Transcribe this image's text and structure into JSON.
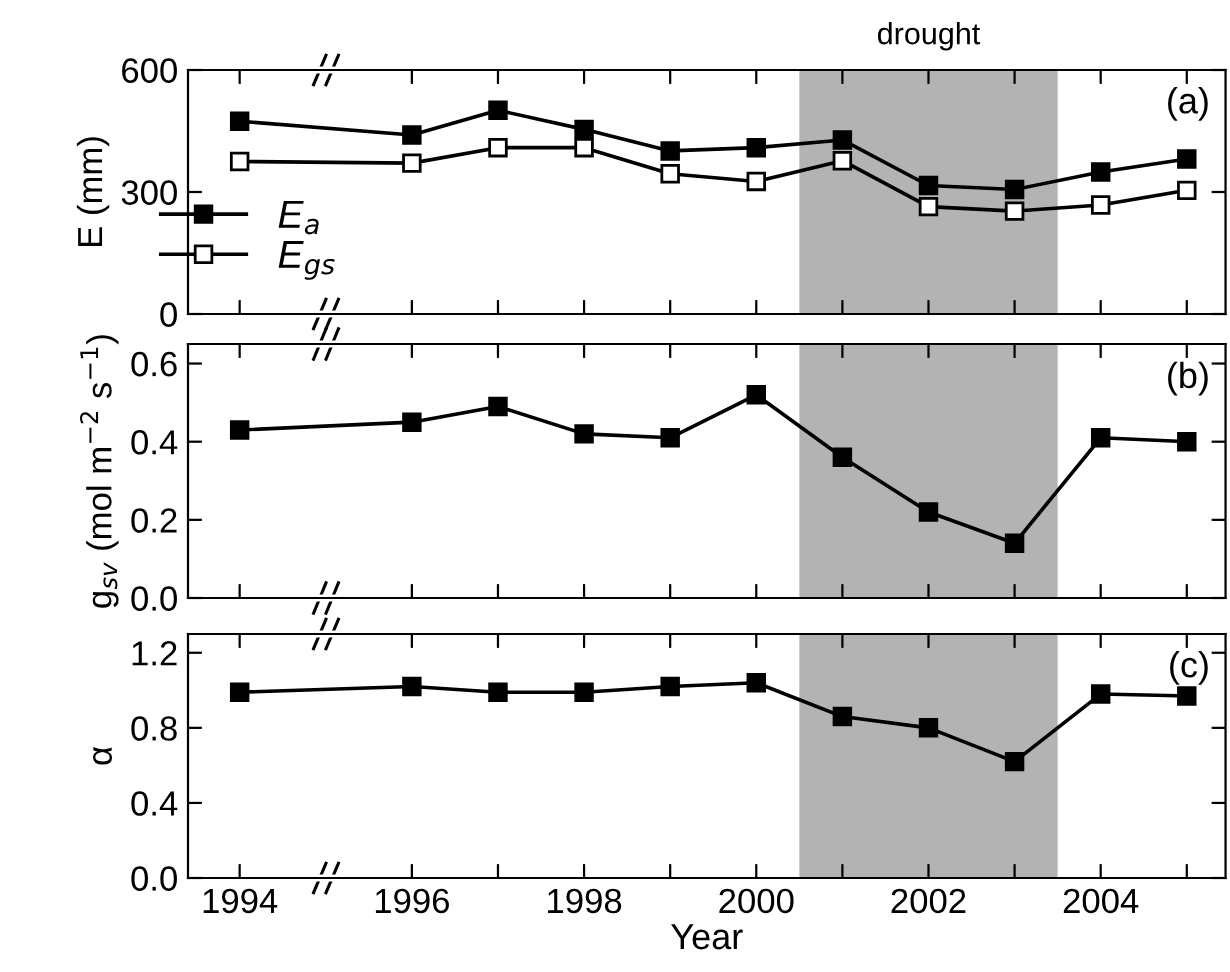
{
  "chart_data": [
    {
      "type": "line",
      "ylabel": "E (mm)",
      "x": [
        1994,
        1996,
        1997,
        1998,
        1999,
        2000,
        2001,
        2002,
        2003,
        2004,
        2005
      ],
      "series": [
        {
          "name": "E$_{a}$",
          "color": "#000000",
          "values": [
            474,
            440,
            501,
            454,
            401,
            409,
            428,
            316,
            306,
            349,
            381
          ]
        },
        {
          "name": "E$_{gs}$",
          "color": "#ffffff",
          "values": [
            375,
            371,
            409,
            409,
            345,
            326,
            377,
            264,
            253,
            268,
            304
          ]
        }
      ],
      "xlim": [
        1993.4,
        2005.45
      ],
      "xticks": [
        1994,
        1996,
        {
          "value": 1997,
          "label": null
        },
        1998,
        {
          "value": 1999,
          "label": null
        },
        2000,
        {
          "value": 2001,
          "label": null
        },
        2002,
        {
          "value": 2003,
          "label": null
        },
        2004,
        {
          "value": 2005,
          "label": null
        }
      ],
      "ylim": [
        0,
        600
      ],
      "yticks": [
        0,
        300,
        600
      ],
      "tick_labels": "y",
      "bands": [
        {
          "axis": "x",
          "from": 2000.5,
          "to": 2003.5,
          "label": "drought",
          "color": "#b3b3b3"
        }
      ],
      "annotations": [
        "(a)"
      ],
      "legend": "lower left",
      "marker": "square",
      "line_style": "solid",
      "grid": false
    },
    {
      "type": "line",
      "ylabel": "g$_{sv}$ (mol m$^{−2}$ s$^{−1}$)",
      "x": [
        1994,
        1996,
        1997,
        1998,
        1999,
        2000,
        2001,
        2002,
        2003,
        2004,
        2005
      ],
      "series": [
        {
          "color": "#000000",
          "values": [
            0.43,
            0.45,
            0.49,
            0.42,
            0.41,
            0.52,
            0.36,
            0.22,
            0.14,
            0.41,
            0.4
          ]
        }
      ],
      "xlim": [
        1993.4,
        2005.45
      ],
      "xticks": [
        1994,
        1996,
        {
          "value": 1997,
          "label": null
        },
        1998,
        {
          "value": 1999,
          "label": null
        },
        2000,
        {
          "value": 2001,
          "label": null
        },
        2002,
        {
          "value": 2003,
          "label": null
        },
        2004,
        {
          "value": 2005,
          "label": null
        }
      ],
      "ylim": [
        0,
        0.65
      ],
      "yticks": [
        {
          "value": 0,
          "label": "0.0"
        },
        0.2,
        0.4,
        0.6
      ],
      "tick_labels": "y",
      "bands": [
        {
          "axis": "x",
          "from": 2000.5,
          "to": 2003.5,
          "color": "#b3b3b3"
        }
      ],
      "annotations": [
        "(b)"
      ],
      "marker": "square",
      "line_style": "solid",
      "grid": false
    },
    {
      "type": "line",
      "xlabel": "Year",
      "ylabel": "α",
      "x": [
        1994,
        1996,
        1997,
        1998,
        1999,
        2000,
        2001,
        2002,
        2003,
        2004,
        2005
      ],
      "series": [
        {
          "color": "#000000",
          "values": [
            0.99,
            1.02,
            0.99,
            0.99,
            1.02,
            1.04,
            0.86,
            0.8,
            0.62,
            0.98,
            0.97
          ]
        }
      ],
      "xlim": [
        1993.4,
        2005.45
      ],
      "xticks": [
        1994,
        1996,
        {
          "value": 1997,
          "label": null
        },
        1998,
        {
          "value": 1999,
          "label": null
        },
        2000,
        {
          "value": 2001,
          "label": null
        },
        2002,
        {
          "value": 2003,
          "label": null
        },
        2004,
        {
          "value": 2005,
          "label": null
        }
      ],
      "ylim": [
        0,
        1.3
      ],
      "yticks": [
        {
          "value": 0,
          "label": "0.0"
        },
        0.4,
        0.8,
        1.2
      ],
      "bands": [
        {
          "axis": "x",
          "from": 2000.5,
          "to": 2003.5,
          "color": "#b3b3b3"
        }
      ],
      "annotations": [
        "(c)"
      ],
      "marker": "square",
      "line_style": "solid",
      "grid": false
    }
  ]
}
